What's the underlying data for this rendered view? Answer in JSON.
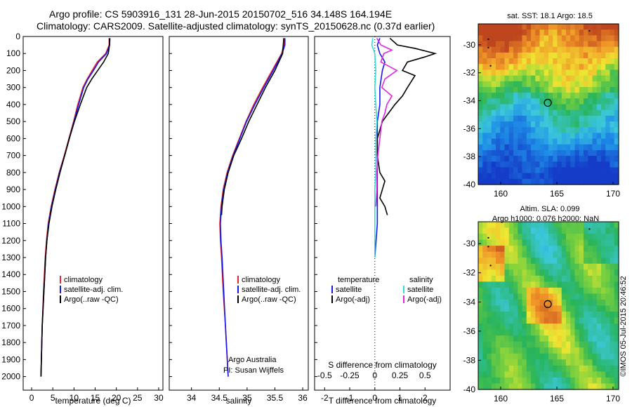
{
  "header": {
    "line1": "Argo profile: CS 5903916_131 28-Jun-2015 20150702_516 34.148S 164.194E",
    "line2": "Climatology: CARS2009. Satellite-adjusted climatology: synTS_20150628.nc (0.37d earlier)"
  },
  "footer_stamp": "©IMOS 05-Jul-2015 20:46:52",
  "colors": {
    "clim": "#e8242c",
    "sat": "#1515f5",
    "argo": "#000000",
    "sat_s": "#33dddd",
    "argo_s": "#e028e0"
  },
  "chart_data": [
    {
      "type": "line",
      "id": "temperature",
      "xlabel": "temperature (deg C)",
      "ylabel": "",
      "xlim": [
        -2,
        31
      ],
      "ylim": [
        0,
        2080
      ],
      "xticks": [
        "0",
        "5",
        "10",
        "15",
        "20",
        "25",
        "30"
      ],
      "yticks": [
        "0",
        "100",
        "200",
        "300",
        "400",
        "500",
        "600",
        "700",
        "800",
        "900",
        "1000",
        "1100",
        "1200",
        "1300",
        "1400",
        "1500",
        "1600",
        "1700",
        "1800",
        "1900",
        "2000"
      ],
      "series": [
        {
          "name": "climatology",
          "depth": [
            10,
            50,
            100,
            150,
            200,
            250,
            300,
            400,
            500,
            600,
            700,
            800,
            900,
            1000,
            1100,
            1200,
            1300,
            1500,
            1700,
            2000
          ],
          "values": [
            18.3,
            18.3,
            17.5,
            15.5,
            14.3,
            13.1,
            12.1,
            10.9,
            9.9,
            8.8,
            7.7,
            6.5,
            5.5,
            4.6,
            3.9,
            3.5,
            3.2,
            2.8,
            2.5,
            2.2
          ]
        },
        {
          "name": "satellite-adj. clim.",
          "depth": [
            10,
            50,
            100,
            150,
            200,
            250,
            300,
            400,
            500,
            600,
            700,
            800,
            900,
            1000,
            1100,
            1200,
            1300,
            1500,
            1700,
            2000
          ],
          "values": [
            18.5,
            18.4,
            17.7,
            15.8,
            14.6,
            13.3,
            12.3,
            11.1,
            10.0,
            8.9,
            7.8,
            6.6,
            5.6,
            4.7,
            4.0,
            3.6,
            3.3,
            2.9,
            2.5,
            2.2
          ]
        },
        {
          "name": "Argo(..raw -QC)",
          "depth": [
            10,
            50,
            100,
            150,
            200,
            250,
            300,
            400,
            500,
            600,
            700,
            800,
            900,
            1000,
            1100,
            1200,
            1300,
            1500,
            1700,
            2000
          ],
          "values": [
            18.4,
            18.4,
            18.1,
            17.0,
            15.6,
            14.2,
            13.0,
            11.5,
            10.1,
            8.9,
            7.8,
            6.7,
            5.7,
            4.8,
            4.1,
            3.6,
            3.3,
            2.9,
            2.5,
            2.2
          ]
        }
      ],
      "legend": [
        "climatology",
        "satellite-adj. clim.",
        "Argo(..raw -QC)"
      ]
    },
    {
      "type": "line",
      "id": "salinity",
      "xlabel": "salinity",
      "ylabel": "",
      "xlim": [
        33.6,
        36.1
      ],
      "ylim": [
        0,
        2080
      ],
      "xticks": [
        "34",
        "34.5",
        "35",
        "35.5",
        "36"
      ],
      "series": [
        {
          "name": "climatology",
          "depth": [
            10,
            50,
            100,
            200,
            300,
            400,
            500,
            600,
            700,
            800,
            900,
            1000,
            1100,
            1200,
            1300,
            1500,
            1700,
            2000
          ],
          "values": [
            35.66,
            35.66,
            35.62,
            35.45,
            35.28,
            35.12,
            34.98,
            34.86,
            34.74,
            34.64,
            34.57,
            34.53,
            34.51,
            34.52,
            34.54,
            34.57,
            34.61,
            34.66
          ]
        },
        {
          "name": "satellite-adj. clim.",
          "depth": [
            10,
            50,
            100,
            200,
            300,
            400,
            500,
            600,
            700,
            800,
            900,
            1000,
            1100,
            1200,
            1300,
            1500,
            1700,
            2000
          ],
          "values": [
            35.68,
            35.68,
            35.63,
            35.47,
            35.3,
            35.14,
            34.99,
            34.87,
            34.75,
            34.65,
            34.58,
            34.54,
            34.52,
            34.53,
            34.55,
            34.58,
            34.61,
            34.66
          ]
        },
        {
          "name": "Argo(..raw -QC)",
          "depth": [
            10,
            50,
            100,
            200,
            300,
            400,
            500,
            600,
            700,
            800,
            900,
            1000,
            1050
          ],
          "values": [
            35.66,
            35.65,
            35.64,
            35.5,
            35.33,
            35.18,
            35.03,
            34.9,
            34.76,
            34.66,
            34.59,
            34.55,
            34.54
          ]
        }
      ],
      "legend": [
        "climatology",
        "satellite-adj. clim.",
        "Argo(..raw -QC)"
      ],
      "annotation": [
        "Argo Australia",
        "PI: Susan Wijffels"
      ]
    },
    {
      "type": "line",
      "id": "differences",
      "xlabel": "T difference from climatology",
      "xlabel_top": "S difference from climatology",
      "xlim": [
        -2.4,
        3.0
      ],
      "ylim": [
        0,
        2080
      ],
      "xticks": [
        "-2",
        "-1",
        "0",
        "1",
        "2"
      ],
      "xticks_s": [
        "-0.5",
        "-0.25",
        "0",
        "0.25",
        "0.5"
      ],
      "series": [
        {
          "name": "satellite",
          "quantity": "temperature",
          "depth": [
            10,
            50,
            100,
            150,
            200,
            300,
            400,
            500,
            600,
            700,
            800,
            900,
            1000,
            1100,
            1200,
            1300
          ],
          "values": [
            0.2,
            0.1,
            0.2,
            0.4,
            0.3,
            0.2,
            0.2,
            0.1,
            0.1,
            0.1,
            0.1,
            0.1,
            0.1,
            0.1,
            0.05,
            0.0
          ]
        },
        {
          "name": "Argo(-adj)",
          "quantity": "temperature",
          "depth": [
            10,
            50,
            70,
            100,
            120,
            150,
            200,
            230,
            300,
            350,
            400,
            500,
            600,
            700,
            800,
            850,
            900,
            950,
            1000,
            1050
          ],
          "values": [
            0.6,
            0.9,
            1.6,
            2.4,
            2.0,
            1.3,
            1.1,
            1.6,
            1.3,
            1.1,
            0.8,
            0.3,
            0.1,
            0.1,
            0.2,
            0.4,
            0.3,
            0.2,
            0.4,
            0.5
          ]
        },
        {
          "name": "satellite",
          "quantity": "salinity",
          "depth": [
            10,
            50,
            100,
            200,
            300,
            400,
            500,
            600,
            700,
            800,
            900,
            1000,
            1100,
            1200,
            1300
          ],
          "values": [
            -0.02,
            -0.03,
            0.0,
            0.01,
            0.0,
            0.01,
            0.02,
            0.01,
            0.01,
            0.01,
            0.0,
            0.0,
            0.0,
            0.0,
            0.0
          ]
        },
        {
          "name": "Argo(-adj)",
          "quantity": "salinity",
          "depth": [
            10,
            50,
            80,
            100,
            150,
            200,
            250,
            300,
            350,
            400,
            450,
            500,
            600,
            700,
            800,
            900,
            1000
          ],
          "values": [
            0.02,
            0.06,
            0.17,
            0.09,
            0.06,
            0.22,
            0.1,
            0.07,
            0.17,
            0.12,
            0.1,
            0.07,
            0.05,
            0.03,
            0.02,
            0.02,
            0.01
          ]
        }
      ],
      "legend_titles": [
        "temperature",
        "salinity"
      ],
      "legend": [
        "satellite",
        "Argo(-adj)",
        "satellite",
        "Argo(-adj)"
      ]
    },
    {
      "type": "heatmap",
      "id": "sst-map",
      "title": "sat. SST: 18.1  Argo: 18.5",
      "xlim": [
        158,
        170.5
      ],
      "ylim": [
        -40,
        -28.5
      ],
      "xticks": [
        "160",
        "165",
        "170"
      ],
      "yticks": [
        "-30",
        "-32",
        "-34",
        "-36",
        "-38",
        "-40"
      ],
      "marker": {
        "lon": 164.194,
        "lat": -34.148
      }
    },
    {
      "type": "heatmap",
      "id": "sla-map",
      "title": "Altim. SLA: 0.099",
      "subtitle": "Argo h1000: 0.076 h2000: NaN",
      "xlim": [
        158,
        170.5
      ],
      "ylim": [
        -40,
        -28.5
      ],
      "xticks": [
        "160",
        "165",
        "170"
      ],
      "yticks": [
        "-30",
        "-32",
        "-34",
        "-36",
        "-38",
        "-40"
      ],
      "marker": {
        "lon": 164.194,
        "lat": -34.148
      }
    }
  ]
}
